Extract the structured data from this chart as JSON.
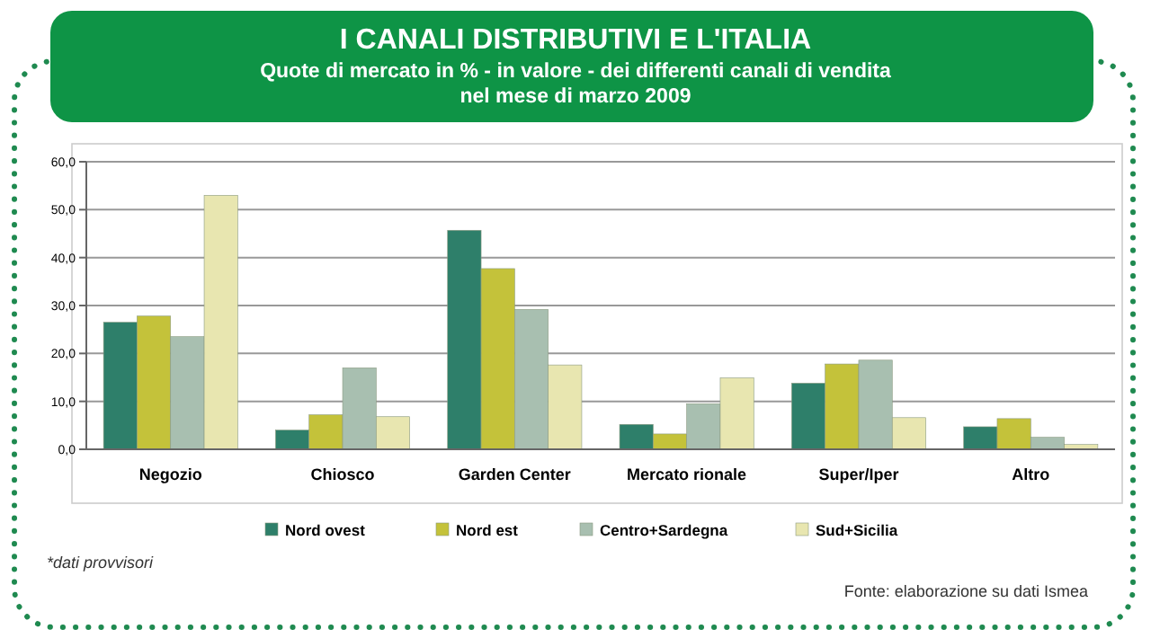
{
  "chart_data": {
    "type": "bar",
    "title": "I CANALI DISTRIBUTIVI E L'ITALIA",
    "subtitle": "Quote di mercato in % - in valore - dei differenti canali di vendita nel mese di marzo 2009",
    "categories": [
      "Negozio",
      "Chiosco",
      "Garden Center",
      "Mercato rionale",
      "Super/Iper",
      "Altro"
    ],
    "series": [
      {
        "name": "Nord ovest",
        "color": "#2e7f6a",
        "values": [
          26.5,
          4.0,
          45.7,
          5.2,
          13.8,
          4.7
        ]
      },
      {
        "name": "Nord est",
        "color": "#c4c23a",
        "values": [
          27.8,
          7.2,
          37.7,
          3.2,
          17.8,
          6.4
        ]
      },
      {
        "name": "Centro+Sardegna",
        "color": "#a8bfb0",
        "values": [
          23.5,
          17.0,
          29.2,
          9.5,
          18.6,
          2.5
        ]
      },
      {
        "name": "Sud+Sicilia",
        "color": "#e8e6b0",
        "values": [
          53.0,
          6.8,
          17.6,
          14.9,
          6.6,
          1.0
        ]
      }
    ],
    "ylim": [
      0,
      60
    ],
    "yticks": [
      {
        "value": 0,
        "label": "0,0"
      },
      {
        "value": 10,
        "label": "10,0"
      },
      {
        "value": 20,
        "label": "20,0"
      },
      {
        "value": 30,
        "label": "30,0"
      },
      {
        "value": 40,
        "label": "40,0"
      },
      {
        "value": 50,
        "label": "50,0"
      },
      {
        "value": 60,
        "label": "60,0"
      }
    ],
    "grid": "y",
    "legend": "bottom",
    "annotations": [
      "*dati provvisori",
      "Fonte: elaborazione su dati Ismea"
    ]
  }
}
